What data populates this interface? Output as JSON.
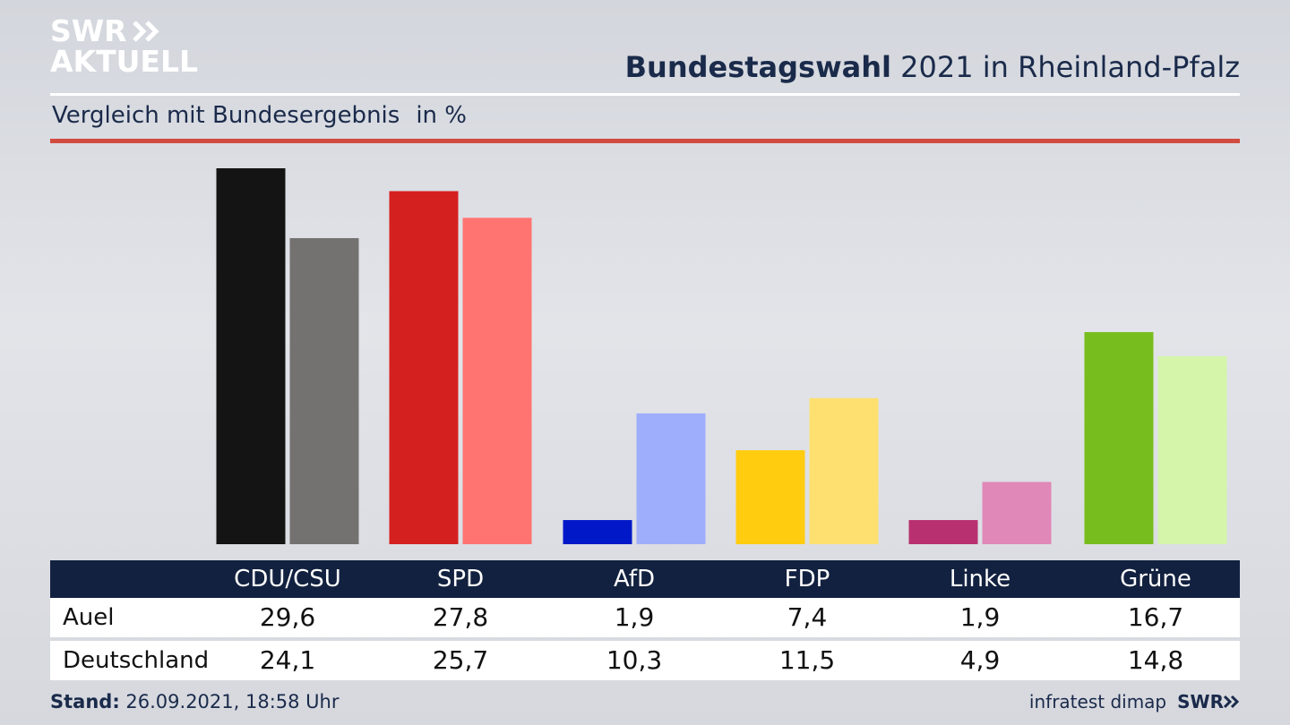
{
  "logo": {
    "line1": "SWR",
    "line2": "AKTUELL"
  },
  "title": {
    "bold": "Bundestagswahl",
    "rest": " 2021 in Rheinland-Pfalz"
  },
  "subtitle": {
    "text": "Vergleich mit Bundesergebnis",
    "unit": "in %"
  },
  "colors": {
    "header_bg": "#12213f",
    "accent_rule": "#d24b3f",
    "local": [
      "#141414",
      "#d52020",
      "#0018c8",
      "#ffcc10",
      "#b83070",
      "#78bd1e"
    ],
    "federal": [
      "#747270",
      "#ff7470",
      "#9eaefc",
      "#fde070",
      "#e088b8",
      "#d4f5aa"
    ]
  },
  "chart_data": {
    "type": "bar",
    "categories": [
      "CDU/CSU",
      "SPD",
      "AfD",
      "FDP",
      "Linke",
      "Grüne"
    ],
    "series": [
      {
        "name": "Auel",
        "values": [
          29.6,
          27.8,
          1.9,
          7.4,
          1.9,
          16.7
        ]
      },
      {
        "name": "Deutschland",
        "values": [
          24.1,
          25.7,
          10.3,
          11.5,
          4.9,
          14.8
        ]
      }
    ],
    "series_display": [
      [
        "29,6",
        "27,8",
        "1,9",
        "7,4",
        "1,9",
        "16,7"
      ],
      [
        "24,1",
        "25,7",
        "10,3",
        "11,5",
        "4,9",
        "14,8"
      ]
    ],
    "ylim": [
      0,
      29.6
    ],
    "grid": false,
    "legend": "none"
  },
  "table": {
    "headers": [
      "CDU/CSU",
      "SPD",
      "AfD",
      "FDP",
      "Linke",
      "Grüne"
    ],
    "rows": [
      {
        "label": "Auel",
        "values": [
          "29,6",
          "27,8",
          "1,9",
          "7,4",
          "1,9",
          "16,7"
        ]
      },
      {
        "label": "Deutschland",
        "values": [
          "24,1",
          "25,7",
          "10,3",
          "11,5",
          "4,9",
          "14,8"
        ]
      }
    ]
  },
  "footer": {
    "label": "Stand:",
    "value": " 26.09.2021, 18:58 Uhr"
  },
  "source": {
    "text": "infratest dimap",
    "brand": "SWR"
  }
}
